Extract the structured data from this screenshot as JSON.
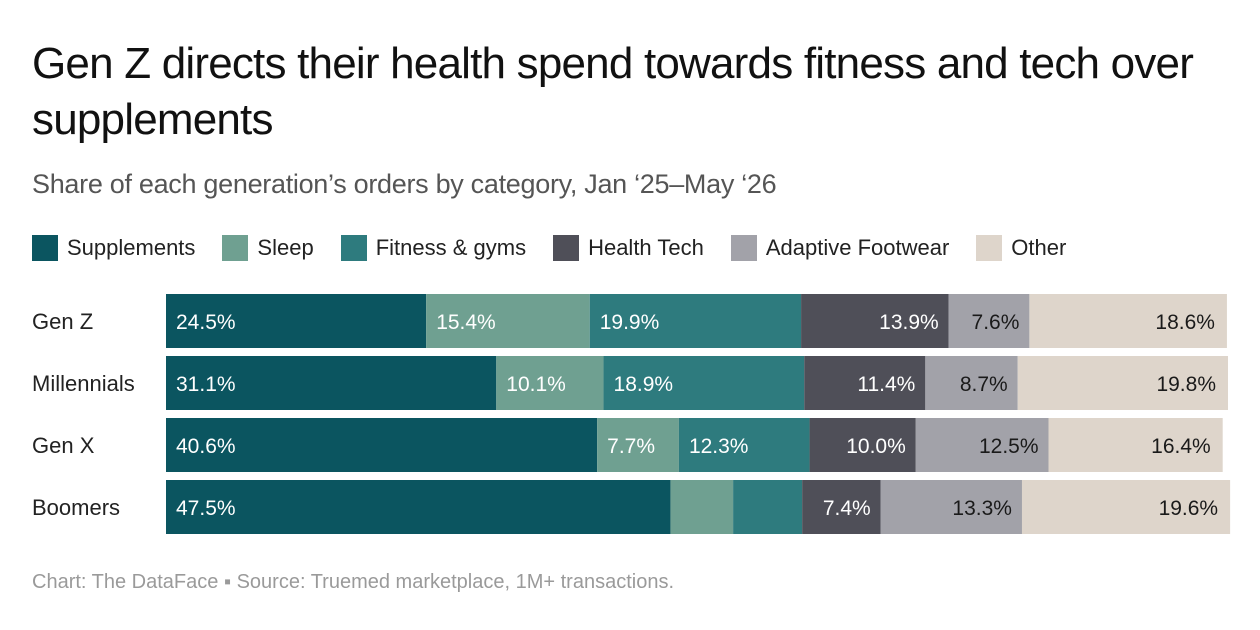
{
  "header": {
    "title": "Gen Z directs their health spend towards fitness and tech over supplements",
    "subtitle": "Share of each generation’s orders by category, Jan ‘25–May ‘26"
  },
  "footer": {
    "source": "Chart: The DataFace ▪ Source: Truemed marketplace, 1M+ transactions."
  },
  "legend": [
    {
      "label": "Supplements",
      "color": "#0b5560"
    },
    {
      "label": "Sleep",
      "color": "#6fa091"
    },
    {
      "label": "Fitness & gyms",
      "color": "#2e7b7e"
    },
    {
      "label": "Health Tech",
      "color": "#4f4f58"
    },
    {
      "label": "Adaptive Footwear",
      "color": "#a2a2a9"
    },
    {
      "label": "Other",
      "color": "#ded5cb"
    }
  ],
  "chart_data": {
    "type": "bar",
    "orientation": "horizontal",
    "stacked": true,
    "title": "Gen Z directs their health spend towards fitness and tech over supplements",
    "subtitle": "Share of each generation’s orders by category, Jan ‘25–May ‘26",
    "categories": [
      "Gen Z",
      "Millennials",
      "Gen X",
      "Boomers"
    ],
    "unit": "%",
    "xlim": [
      0,
      100
    ],
    "grid": false,
    "legend_position": "top",
    "series": [
      {
        "name": "Supplements",
        "color": "#0b5560",
        "text_color": "#ffffff",
        "values": [
          24.5,
          31.1,
          40.6,
          47.5
        ],
        "labels": [
          "24.5%",
          "31.1%",
          "40.6%",
          "47.5%"
        ]
      },
      {
        "name": "Sleep",
        "color": "#6fa091",
        "text_color": "#ffffff",
        "values": [
          15.4,
          10.1,
          7.7,
          5.9
        ],
        "labels": [
          "15.4%",
          "10.1%",
          "7.7%",
          ""
        ]
      },
      {
        "name": "Fitness & gyms",
        "color": "#2e7b7e",
        "text_color": "#ffffff",
        "values": [
          19.9,
          18.9,
          12.3,
          6.5
        ],
        "labels": [
          "19.9%",
          "18.9%",
          "12.3%",
          ""
        ]
      },
      {
        "name": "Health Tech",
        "color": "#4f4f58",
        "text_color": "#ffffff",
        "values": [
          13.9,
          11.4,
          10.0,
          7.4
        ],
        "labels": [
          "13.9%",
          "11.4%",
          "10.0%",
          "7.4%"
        ]
      },
      {
        "name": "Adaptive Footwear",
        "color": "#a2a2a9",
        "text_color": "#1a1a1a",
        "values": [
          7.6,
          8.7,
          12.5,
          13.3
        ],
        "labels": [
          "7.6%",
          "8.7%",
          "12.5%",
          "13.3%"
        ]
      },
      {
        "name": "Other",
        "color": "#ded5cb",
        "text_color": "#1a1a1a",
        "values": [
          18.6,
          19.8,
          16.4,
          19.6
        ],
        "labels": [
          "18.6%",
          "19.8%",
          "16.4%",
          "19.6%"
        ]
      }
    ]
  }
}
